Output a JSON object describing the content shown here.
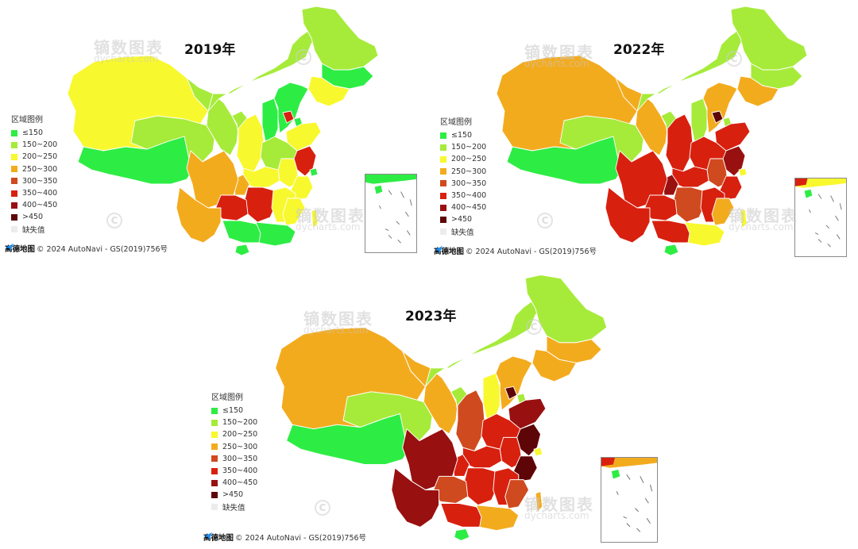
{
  "legend": {
    "title": "区域图例",
    "items": [
      {
        "key": "lt150",
        "label": "≤150",
        "color": "#2ded44"
      },
      {
        "key": "150_200",
        "label": "150~200",
        "color": "#a6eb3a"
      },
      {
        "key": "200_250",
        "label": "200~250",
        "color": "#f8f82e"
      },
      {
        "key": "250_300",
        "label": "250~300",
        "color": "#f3ab1e"
      },
      {
        "key": "300_350",
        "label": "300~350",
        "color": "#cf4a1f"
      },
      {
        "key": "350_400",
        "label": "350~400",
        "color": "#d8200f"
      },
      {
        "key": "400_450",
        "label": "400~450",
        "color": "#981010"
      },
      {
        "key": "gt450",
        "label": ">450",
        "color": "#5e0508"
      },
      {
        "key": "missing",
        "label": "缺失值",
        "color": "#ececec"
      }
    ]
  },
  "attribution": {
    "brand": "高德地图",
    "text": "© 2024 AutoNavi - GS(2019)756号"
  },
  "watermark": {
    "main": "镝数图表",
    "sub": "dycharts.com"
  },
  "maps": [
    {
      "year_label": "2019年",
      "regions": {
        "heilongjiang": "150_200",
        "jilin": "lt150",
        "liaoning": "200_250",
        "neimenggu": "150_200",
        "xinjiang": "200_250",
        "xizang": "lt150",
        "qinghai": "150_200",
        "gansu": "150_200",
        "ningxia": "150_200",
        "shaanxi": "200_250",
        "shanxi": "lt150",
        "hebei": "lt150",
        "beijing": "350_400",
        "tianjin": "lt150",
        "shandong": "200_250",
        "henan": "150_200",
        "jiangsu": "350_400",
        "shanghai": "lt150",
        "anhui": "200_250",
        "zhejiang": "200_250",
        "hubei": "200_250",
        "sichuan": "250_300",
        "chongqing": "250_300",
        "hunan": "350_400",
        "guizhou": "350_400",
        "jiangxi": "200_250",
        "fujian": "200_250",
        "yunnan": "250_300",
        "guangxi": "lt150",
        "guangdong": "lt150",
        "hainan": "lt150",
        "taiwan": "200_250"
      }
    },
    {
      "year_label": "2022年",
      "regions": {
        "heilongjiang": "150_200",
        "jilin": "150_200",
        "liaoning": "250_300",
        "neimenggu": "150_200",
        "xinjiang": "250_300",
        "xizang": "lt150",
        "qinghai": "150_200",
        "gansu": "250_300",
        "ningxia": "150_200",
        "shaanxi": "350_400",
        "shanxi": "150_200",
        "hebei": "250_300",
        "beijing": "gt450",
        "tianjin": "150_200",
        "shandong": "350_400",
        "henan": "350_400",
        "jiangsu": "400_450",
        "shanghai": "200_250",
        "anhui": "300_350",
        "zhejiang": "350_400",
        "hubei": "350_400",
        "sichuan": "350_400",
        "chongqing": "400_450",
        "hunan": "300_350",
        "guizhou": "350_400",
        "jiangxi": "350_400",
        "fujian": "250_300",
        "yunnan": "350_400",
        "guangxi": "350_400",
        "guangdong": "200_250",
        "hainan": "lt150",
        "taiwan": "200_250"
      }
    },
    {
      "year_label": "2023年",
      "regions": {
        "heilongjiang": "150_200",
        "jilin": "250_300",
        "liaoning": "250_300",
        "neimenggu": "150_200",
        "xinjiang": "250_300",
        "xizang": "lt150",
        "qinghai": "150_200",
        "gansu": "250_300",
        "ningxia": "150_200",
        "shaanxi": "300_350",
        "shanxi": "200_250",
        "hebei": "250_300",
        "beijing": "gt450",
        "tianjin": "150_200",
        "shandong": "400_450",
        "henan": "350_400",
        "jiangsu": "gt450",
        "shanghai": "200_250",
        "anhui": "350_400",
        "zhejiang": "gt450",
        "hubei": "350_400",
        "sichuan": "400_450",
        "chongqing": "350_400",
        "hunan": "350_400",
        "guizhou": "300_350",
        "jiangxi": "350_400",
        "fujian": "300_350",
        "yunnan": "400_450",
        "guangxi": "350_400",
        "guangdong": "250_300",
        "hainan": "lt150",
        "taiwan": "250_300"
      }
    }
  ]
}
